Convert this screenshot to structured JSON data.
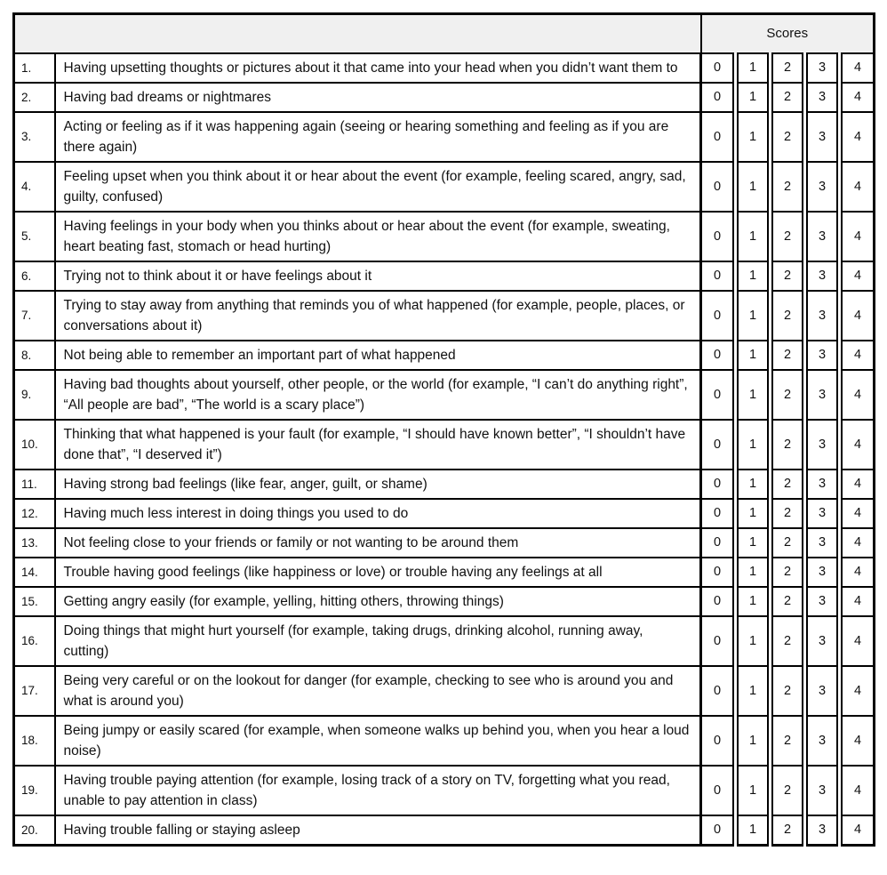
{
  "header": {
    "scores_label": "Scores"
  },
  "score_options": [
    "0",
    "1",
    "2",
    "3",
    "4"
  ],
  "items": [
    {
      "num": "1.",
      "text": "Having upsetting thoughts or pictures about it that came into your head when you didn’t want them to"
    },
    {
      "num": "2.",
      "text": "Having bad dreams or nightmares"
    },
    {
      "num": "3.",
      "text": "Acting or feeling as if it was happening again (seeing or hearing something and feeling as if you are there again)"
    },
    {
      "num": "4.",
      "text": "Feeling upset when you think about it or hear about the event (for example, feeling scared, angry, sad, guilty, confused)"
    },
    {
      "num": "5.",
      "text": "Having feelings in your body when you thinks about or hear about the event (for example, sweating, heart beating fast, stomach or head hurting)"
    },
    {
      "num": "6.",
      "text": "Trying not to think about it or have feelings about it"
    },
    {
      "num": "7.",
      "text": "Trying to stay away from anything that reminds you of what happened (for example, people, places, or conversations about it)"
    },
    {
      "num": "8.",
      "text": "Not being able to remember an important part of what happened"
    },
    {
      "num": "9.",
      "text": "Having bad thoughts about yourself, other people, or the world (for example, “I can’t do anything right”, “All people are bad”, “The world is a scary place”)"
    },
    {
      "num": "10.",
      "text": "Thinking that what happened is your fault (for example, “I should have known better”, “I shouldn’t have done that”, “I deserved it”)"
    },
    {
      "num": "11.",
      "text": "Having strong bad feelings (like fear, anger, guilt, or shame)"
    },
    {
      "num": "12.",
      "text": "Having much less interest in doing things you used to do"
    },
    {
      "num": "13.",
      "text": "Not feeling close to your friends or family or not wanting to be around them"
    },
    {
      "num": "14.",
      "text": "Trouble having good feelings (like happiness or love) or trouble having any feelings at all"
    },
    {
      "num": "15.",
      "text": "Getting angry easily (for example, yelling, hitting others, throwing things)"
    },
    {
      "num": "16.",
      "text": "Doing things that might hurt yourself (for example, taking drugs, drinking alcohol, running away, cutting)"
    },
    {
      "num": "17.",
      "text": "Being very careful or on the lookout for danger (for example, checking to see who is around you and what is around you)"
    },
    {
      "num": "18.",
      "text": "Being jumpy or easily scared (for example, when someone walks up behind you, when you hear a loud noise)"
    },
    {
      "num": "19.",
      "text": "Having trouble paying attention (for example, losing track of a story on TV, forgetting what you read, unable to pay attention in class)"
    },
    {
      "num": "20.",
      "text": "Having trouble falling or staying asleep"
    }
  ],
  "colors": {
    "header_bg": "#f0f0f0",
    "border": "#000000",
    "text": "#111111",
    "page_bg": "#ffffff"
  }
}
